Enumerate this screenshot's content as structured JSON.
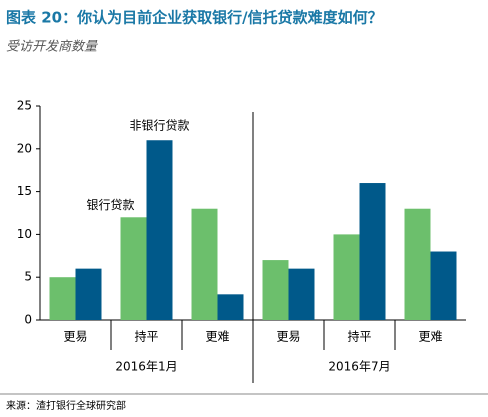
{
  "chart_data": {
    "type": "bar",
    "title": "图表 20：你认为目前企业获取银行/信托贷款难度如何？",
    "subtitle": "受访开发商数量",
    "source": "来源：渣打银行全球研究部",
    "categories": [
      "更易",
      "持平",
      "更难",
      "更易",
      "持平",
      "更难"
    ],
    "groups": [
      "2016年1月",
      "2016年7月"
    ],
    "series": [
      {
        "name": "银行贷款",
        "color": "#6cbf6c",
        "values": [
          5,
          12,
          13,
          7,
          10,
          13
        ]
      },
      {
        "name": "非银行贷款",
        "color": "#00598a",
        "values": [
          6,
          21,
          3,
          6,
          16,
          8
        ]
      }
    ],
    "ylim": [
      0,
      25
    ],
    "yticks": [
      0,
      5,
      10,
      15,
      20,
      25
    ]
  }
}
